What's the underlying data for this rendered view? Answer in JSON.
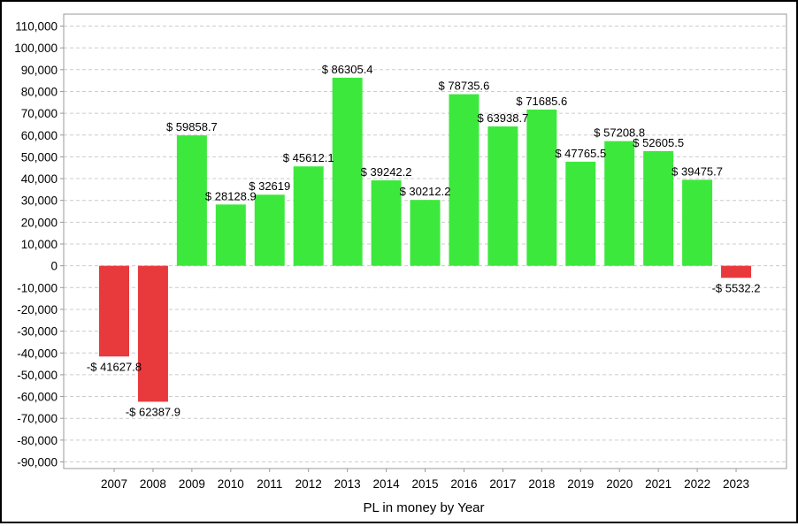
{
  "chart_data": {
    "type": "bar",
    "title": "",
    "xlabel": "PL in money by Year",
    "ylabel": "",
    "categories": [
      "2007",
      "2008",
      "2009",
      "2010",
      "2011",
      "2012",
      "2013",
      "2014",
      "2015",
      "2016",
      "2017",
      "2018",
      "2019",
      "2020",
      "2021",
      "2022",
      "2023"
    ],
    "values": [
      -41627.8,
      -62387.9,
      59858.7,
      28128.9,
      32619,
      45612.1,
      86305.4,
      39242.2,
      30212.2,
      78735.6,
      63938.7,
      71685.6,
      47765.5,
      57208.8,
      52605.5,
      39475.7,
      -5532.2
    ],
    "data_labels": [
      "-$ 41627.8",
      "-$ 62387.9",
      "$ 59858.7",
      "$ 28128.9",
      "$ 32619",
      "$ 45612.1",
      "$ 86305.4",
      "$ 39242.2",
      "$ 30212.2",
      "$ 78735.6",
      "$ 63938.7",
      "$ 71685.6",
      "$ 47765.5",
      "$ 57208.8",
      "$ 52605.5",
      "$ 39475.7",
      "-$ 5532.2"
    ],
    "yticks": [
      110000,
      100000,
      90000,
      80000,
      70000,
      60000,
      50000,
      40000,
      30000,
      20000,
      10000,
      0,
      -10000,
      -20000,
      -30000,
      -40000,
      -50000,
      -60000,
      -70000,
      -80000,
      -90000
    ],
    "ytick_labels": [
      "110,000",
      "100,000",
      "90,000",
      "80,000",
      "70,000",
      "60,000",
      "50,000",
      "40,000",
      "30,000",
      "20,000",
      "10,000",
      "0",
      "-10,000",
      "-20,000",
      "-30,000",
      "-40,000",
      "-50,000",
      "-60,000",
      "-70,000",
      "-80,000",
      "-90,000"
    ],
    "ylim": [
      -90000,
      110000
    ],
    "grid": true,
    "legend": "none",
    "colors": {
      "positive": "#3de83d",
      "negative": "#e8393d",
      "grid": "#cccccc",
      "axis": "#999999"
    }
  }
}
